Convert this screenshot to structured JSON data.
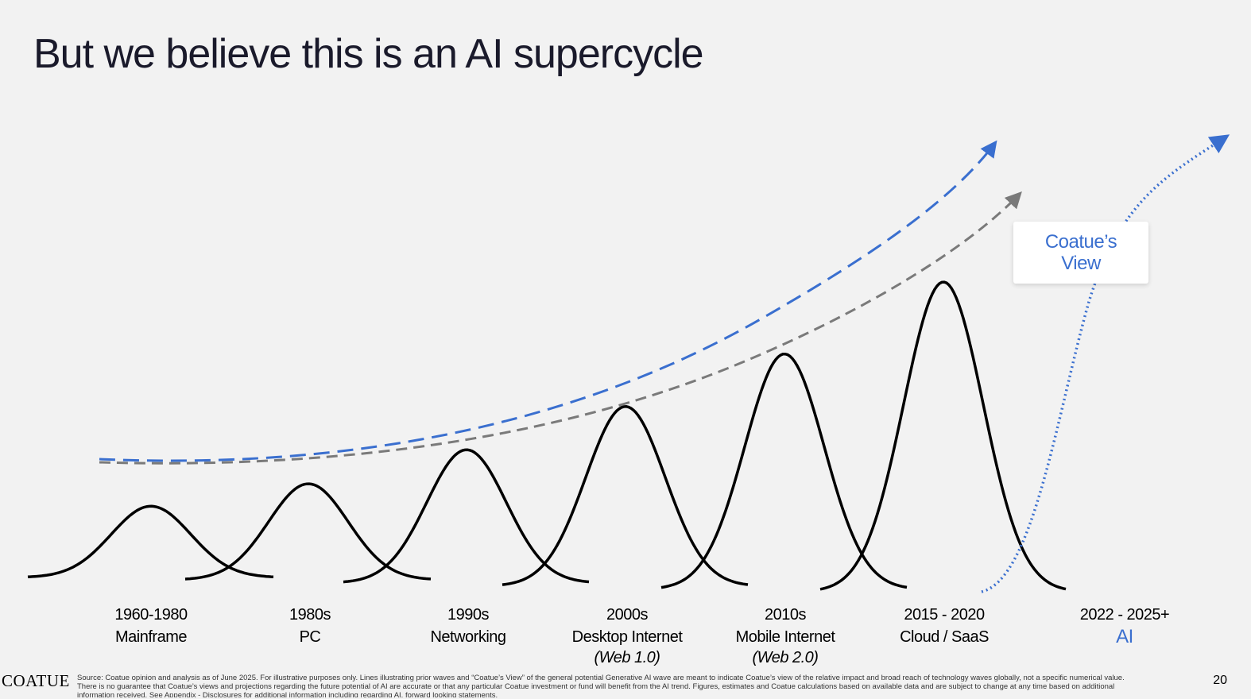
{
  "title": "But we believe this is an AI supercycle",
  "eras": [
    {
      "period": "1960-1980",
      "name": "Mainframe",
      "sub": ""
    },
    {
      "period": "1980s",
      "name": "PC",
      "sub": ""
    },
    {
      "period": "1990s",
      "name": "Networking",
      "sub": ""
    },
    {
      "period": "2000s",
      "name": "Desktop Internet",
      "sub": "(Web 1.0)"
    },
    {
      "period": "2010s",
      "name": "Mobile Internet",
      "sub": "(Web 2.0)"
    },
    {
      "period": "2015 - 2020",
      "name": "Cloud / SaaS",
      "sub": ""
    },
    {
      "period": "2022 - 2025+",
      "name": "AI",
      "sub": ""
    }
  ],
  "callout": {
    "line1": "Coatue’s",
    "line2": "View"
  },
  "logo": "COATUE",
  "footnote": "Source: Coatue opinion and analysis as of June 2025. For illustrative purposes only. Lines illustrating prior waves and “Coatue’s View” of the general potential Generative AI wave are meant to indicate Coatue’s view of the relative impact and broad reach of technology waves globally, not a specific numerical value. There is no guarantee that Coatue’s views and projections regarding the future potential of AI are accurate or that any particular Coatue investment or fund will benefit from the AI trend.  Figures, estimates and Coatue calculations based on available data and are subject to change at any time based on additional information received. See Appendix - Disclosures for additional information including regarding AI, forward looking statements.",
  "page_number": "20",
  "colors": {
    "accent_blue": "#3a6fcf",
    "trend_gray": "#7a7a7a",
    "wave_black": "#000000"
  },
  "waves": [
    {
      "era": "Mainframe",
      "relative_height": 0.23
    },
    {
      "era": "PC",
      "relative_height": 0.31
    },
    {
      "era": "Networking",
      "relative_height": 0.43
    },
    {
      "era": "Desktop Internet",
      "relative_height": 0.58
    },
    {
      "era": "Mobile Internet",
      "relative_height": 0.76
    },
    {
      "era": "Cloud / SaaS",
      "relative_height": 1.0
    }
  ]
}
